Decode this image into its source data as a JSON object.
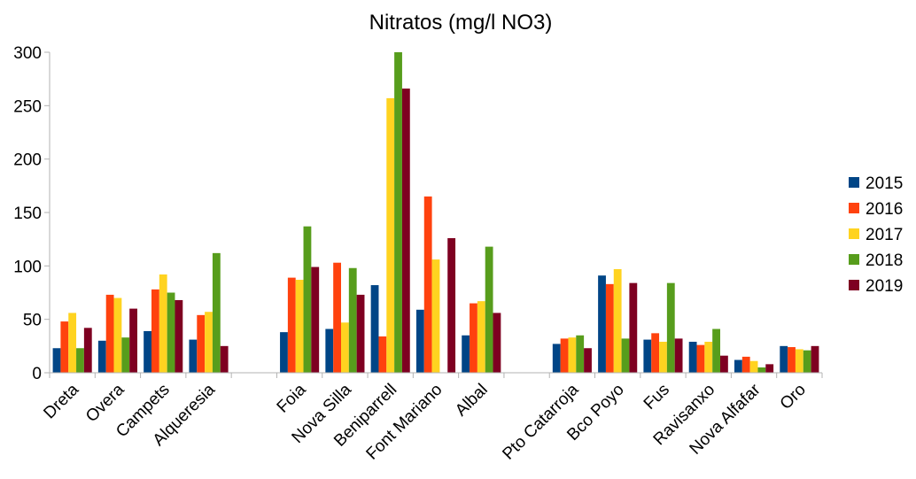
{
  "chart_data": {
    "type": "bar",
    "title": "Nitratos (mg/l NO3)",
    "xlabel": "",
    "ylabel": "",
    "ylim": [
      0,
      300
    ],
    "yticks": [
      0,
      50,
      100,
      150,
      200,
      250,
      300
    ],
    "grid": false,
    "legend_position": "right",
    "categories": [
      "Dreta",
      "Overa",
      "Campets",
      "Alqueresia",
      "",
      "Foia",
      "Nova Silla",
      "Beniparrell",
      "Font Mariano",
      "Albal",
      "",
      "Pto Catarroja",
      "Bco Poyo",
      "Fus",
      "Ravisanxo",
      "Nova Alfafar",
      "Oro"
    ],
    "series": [
      {
        "name": "2015",
        "color": "#004586",
        "values": [
          23,
          30,
          39,
          31,
          null,
          38,
          41,
          82,
          59,
          35,
          null,
          27,
          91,
          31,
          29,
          12,
          25
        ]
      },
      {
        "name": "2016",
        "color": "#ff420e",
        "values": [
          48,
          73,
          78,
          54,
          null,
          89,
          103,
          34,
          165,
          65,
          null,
          32,
          83,
          37,
          26,
          15,
          24
        ]
      },
      {
        "name": "2017",
        "color": "#ffd320",
        "values": [
          56,
          70,
          92,
          57,
          null,
          87,
          47,
          257,
          106,
          67,
          null,
          33,
          97,
          29,
          29,
          11,
          22
        ]
      },
      {
        "name": "2018",
        "color": "#579d1c",
        "values": [
          23,
          33,
          75,
          112,
          null,
          137,
          98,
          300,
          null,
          118,
          null,
          35,
          32,
          84,
          41,
          5,
          21
        ]
      },
      {
        "name": "2019",
        "color": "#7e0021",
        "values": [
          42,
          60,
          68,
          25,
          null,
          99,
          73,
          266,
          126,
          56,
          null,
          23,
          84,
          32,
          16,
          8,
          25
        ]
      }
    ]
  }
}
